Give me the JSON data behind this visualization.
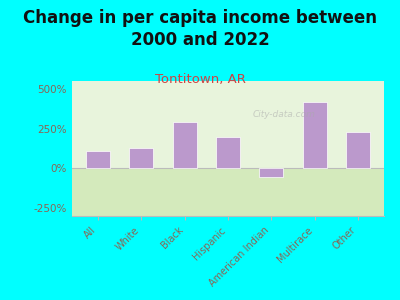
{
  "title": "Change in per capita income between\n2000 and 2022",
  "subtitle": "Tontitown, AR",
  "categories": [
    "All",
    "White",
    "Black",
    "Hispanic",
    "American Indian",
    "Multirace",
    "Other"
  ],
  "values": [
    110,
    130,
    290,
    200,
    -55,
    420,
    230
  ],
  "bar_color": "#bb99cc",
  "background_outer": "#00ffff",
  "title_fontsize": 12,
  "subtitle_fontsize": 9.5,
  "subtitle_color": "#cc4444",
  "title_color": "#111111",
  "tick_label_color": "#886655",
  "ylim": [
    -300,
    550
  ],
  "yticks": [
    -250,
    0,
    250,
    500
  ],
  "ytick_labels": [
    "-250%",
    "0%",
    "250%",
    "500%"
  ],
  "watermark": "City-data.com"
}
